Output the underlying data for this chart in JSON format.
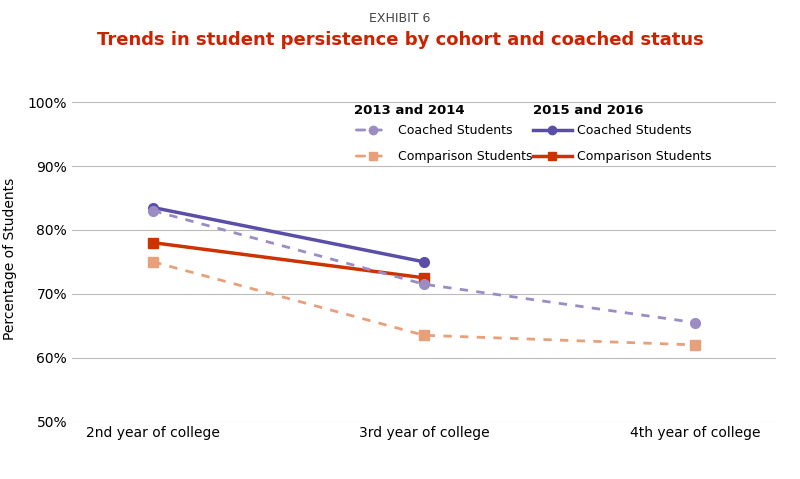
{
  "exhibit_label": "EXHIBIT 6",
  "title": "Trends in student persistence by cohort and coached status",
  "xlabel_ticks": [
    "2nd year of college",
    "3rd year of college",
    "4th year of college"
  ],
  "ylabel": "Percentage of Students",
  "ylim": [
    50,
    101
  ],
  "yticks": [
    50,
    60,
    70,
    80,
    90,
    100
  ],
  "ytick_labels": [
    "50%",
    "60%",
    "70%",
    "80%",
    "90%",
    "100%"
  ],
  "series": {
    "coached_2015_2016": {
      "label": "Coached Students",
      "cohort": "2015 and 2016",
      "values": [
        83.5,
        75.0,
        null
      ],
      "color": "#5b4ea8",
      "linestyle": "solid",
      "marker": "o",
      "linewidth": 2.5
    },
    "comparison_2015_2016": {
      "label": "Comparison Students",
      "cohort": "2015 and 2016",
      "values": [
        78.0,
        72.5,
        null
      ],
      "color": "#cc3300",
      "linestyle": "solid",
      "marker": "s",
      "linewidth": 2.5
    },
    "coached_2013_2014": {
      "label": "Coached Students",
      "cohort": "2013 and 2014",
      "values": [
        83.0,
        71.5,
        65.5
      ],
      "color": "#9b8cc4",
      "linestyle": "dotted",
      "marker": "o",
      "linewidth": 2.0
    },
    "comparison_2013_2014": {
      "label": "Comparison Students",
      "cohort": "2013 and 2014",
      "values": [
        75.0,
        63.5,
        62.0
      ],
      "color": "#e8a07a",
      "linestyle": "dotted",
      "marker": "s",
      "linewidth": 2.0
    }
  },
  "legend": {
    "cohort_2013": "2013 and 2014",
    "cohort_2015": "2015 and 2016",
    "coached_label": "Coached Students",
    "comparison_label": "Comparison Students"
  },
  "title_color": "#cc2200",
  "exhibit_color": "#444444",
  "background_color": "#ffffff",
  "grid_color": "#bbbbbb",
  "purple_dark": "#5b4ea8",
  "red_dark": "#cc3300",
  "purple_light": "#9b8cc4",
  "orange_light": "#e8a07a"
}
